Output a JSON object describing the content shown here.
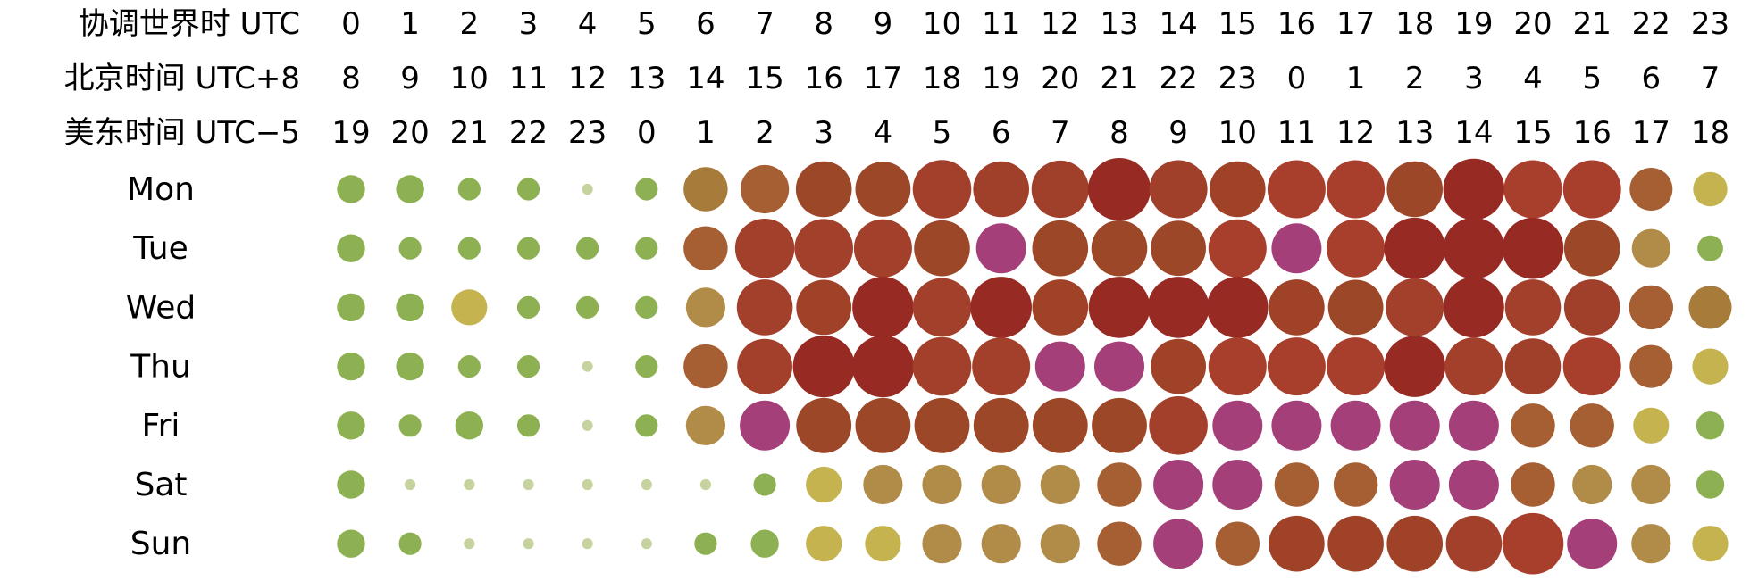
{
  "chart_data": {
    "type": "scatter",
    "timezone_rows": [
      {
        "label": "协调世界时 UTC",
        "hours": [
          "0",
          "1",
          "2",
          "3",
          "4",
          "5",
          "6",
          "7",
          "8",
          "9",
          "10",
          "11",
          "12",
          "13",
          "14",
          "15",
          "16",
          "17",
          "18",
          "19",
          "20",
          "21",
          "22",
          "23"
        ]
      },
      {
        "label": "北京时间 UTC+8",
        "hours": [
          "8",
          "9",
          "10",
          "11",
          "12",
          "13",
          "14",
          "15",
          "16",
          "17",
          "18",
          "19",
          "20",
          "21",
          "22",
          "23",
          "0",
          "1",
          "2",
          "3",
          "4",
          "5",
          "6",
          "7"
        ]
      },
      {
        "label": "美东时间 UTC−5",
        "hours": [
          "19",
          "20",
          "21",
          "22",
          "23",
          "0",
          "1",
          "2",
          "3",
          "4",
          "5",
          "6",
          "7",
          "8",
          "9",
          "10",
          "11",
          "12",
          "13",
          "14",
          "15",
          "16",
          "17",
          "18"
        ]
      }
    ],
    "days": [
      "Mon",
      "Tue",
      "Wed",
      "Thu",
      "Fri",
      "Sat",
      "Sun"
    ],
    "size_scale_max": 10,
    "values": [
      [
        2.0,
        2.0,
        1.3,
        1.3,
        0.3,
        1.3,
        5.0,
        6.0,
        8.0,
        7.8,
        8.8,
        8.0,
        8.4,
        10.0,
        8.6,
        8.0,
        8.6,
        8.6,
        8.0,
        9.6,
        8.6,
        8.6,
        4.7,
        3.0
      ],
      [
        2.0,
        1.3,
        1.3,
        1.3,
        1.3,
        1.3,
        5.0,
        9.0,
        8.8,
        8.6,
        8.0,
        6.4,
        8.0,
        8.0,
        7.8,
        8.6,
        6.4,
        8.6,
        9.6,
        9.6,
        9.6,
        8.0,
        3.8,
        1.7
      ],
      [
        2.0,
        2.0,
        3.3,
        1.3,
        1.3,
        1.3,
        4.0,
        8.0,
        7.8,
        9.6,
        8.8,
        9.6,
        8.0,
        9.6,
        9.6,
        9.6,
        8.0,
        7.8,
        8.6,
        9.4,
        8.0,
        8.0,
        5.0,
        4.7
      ],
      [
        2.0,
        2.0,
        1.3,
        1.3,
        0.3,
        1.3,
        5.0,
        7.8,
        9.8,
        9.8,
        8.8,
        8.6,
        6.4,
        6.4,
        7.8,
        8.6,
        8.6,
        8.6,
        9.6,
        8.6,
        8.0,
        8.6,
        4.7,
        3.3
      ],
      [
        2.0,
        1.3,
        2.0,
        1.3,
        0.3,
        1.3,
        4.0,
        6.4,
        7.8,
        7.8,
        7.8,
        7.8,
        7.8,
        7.8,
        8.8,
        6.4,
        6.4,
        6.4,
        6.4,
        6.4,
        5.0,
        5.0,
        3.3,
        2.0
      ],
      [
        2.0,
        0.3,
        0.3,
        0.3,
        0.3,
        0.3,
        0.3,
        1.3,
        3.3,
        4.0,
        4.0,
        4.0,
        4.0,
        5.0,
        6.4,
        6.4,
        5.0,
        5.0,
        6.4,
        6.4,
        5.0,
        4.0,
        4.0,
        2.0
      ],
      [
        2.0,
        1.3,
        0.3,
        0.3,
        0.3,
        0.3,
        1.3,
        2.0,
        3.3,
        3.3,
        4.0,
        4.0,
        4.0,
        5.0,
        6.4,
        5.0,
        8.0,
        8.0,
        8.0,
        8.0,
        9.6,
        6.4,
        4.0,
        3.3
      ]
    ],
    "colors": [
      [
        "#8db152",
        "#8db152",
        "#8db152",
        "#8db152",
        "#c6d39e",
        "#8db152",
        "#a77c3b",
        "#a55f32",
        "#9c4728",
        "#9c4728",
        "#a3402b",
        "#a03f2a",
        "#a03f2a",
        "#972b24",
        "#a03f2a",
        "#a04228",
        "#a83f2d",
        "#a83f2d",
        "#9c4728",
        "#972b24",
        "#a83f2d",
        "#a83f2d",
        "#a55f32",
        "#c4b34e"
      ],
      [
        "#8db152",
        "#8db152",
        "#8db152",
        "#8db152",
        "#8db152",
        "#8db152",
        "#a55f32",
        "#a3402b",
        "#a3402b",
        "#a3402b",
        "#9c4728",
        "#a43f7a",
        "#9c4728",
        "#9c4728",
        "#9c4728",
        "#a83f2d",
        "#a43f7a",
        "#a83f2d",
        "#972b24",
        "#972b24",
        "#972b24",
        "#9c4728",
        "#b18b48",
        "#8db152"
      ],
      [
        "#8db152",
        "#8db152",
        "#c4b34e",
        "#8db152",
        "#8db152",
        "#8db152",
        "#b18b48",
        "#a3402b",
        "#a04228",
        "#972b24",
        "#a3402b",
        "#972b24",
        "#a04228",
        "#972b24",
        "#972b24",
        "#972b24",
        "#a04228",
        "#9c4728",
        "#a3402b",
        "#972b24",
        "#a3402b",
        "#a03f2a",
        "#a55f32",
        "#a77c3b"
      ],
      [
        "#8db152",
        "#8db152",
        "#8db152",
        "#8db152",
        "#c6d39e",
        "#8db152",
        "#a55f32",
        "#a3402b",
        "#972b24",
        "#972b24",
        "#a3402b",
        "#a3402b",
        "#a43f7a",
        "#a43f7a",
        "#a04228",
        "#a83f2d",
        "#a83f2d",
        "#a83f2d",
        "#972b24",
        "#a3402b",
        "#a03f2a",
        "#a83f2d",
        "#a55f32",
        "#c4b34e"
      ],
      [
        "#8db152",
        "#8db152",
        "#8db152",
        "#8db152",
        "#c6d39e",
        "#8db152",
        "#b18b48",
        "#a43f7a",
        "#9c4728",
        "#9c4728",
        "#9c4728",
        "#9c4728",
        "#9c4728",
        "#9c4728",
        "#a3402b",
        "#a43f7a",
        "#a43f7a",
        "#a43f7a",
        "#a43f7a",
        "#a43f7a",
        "#a55f32",
        "#a55f32",
        "#c4b34e",
        "#8db152"
      ],
      [
        "#8db152",
        "#c6d39e",
        "#c6d39e",
        "#c6d39e",
        "#c6d39e",
        "#c6d39e",
        "#c6d39e",
        "#8db152",
        "#c4b34e",
        "#b18b48",
        "#b18b48",
        "#b18b48",
        "#b18b48",
        "#a55f32",
        "#a43f7a",
        "#a43f7a",
        "#a55f32",
        "#a55f32",
        "#a43f7a",
        "#a43f7a",
        "#a55f32",
        "#b18b48",
        "#b18b48",
        "#8db152"
      ],
      [
        "#8db152",
        "#8db152",
        "#c6d39e",
        "#c6d39e",
        "#c6d39e",
        "#c6d39e",
        "#8db152",
        "#8db152",
        "#c4b34e",
        "#c4b34e",
        "#b18b48",
        "#b18b48",
        "#b18b48",
        "#a55f32",
        "#a43f7a",
        "#a55f32",
        "#a04228",
        "#a04228",
        "#a04228",
        "#a3402b",
        "#a83f2d",
        "#a43f7a",
        "#b18b48",
        "#c4b34e"
      ]
    ]
  }
}
